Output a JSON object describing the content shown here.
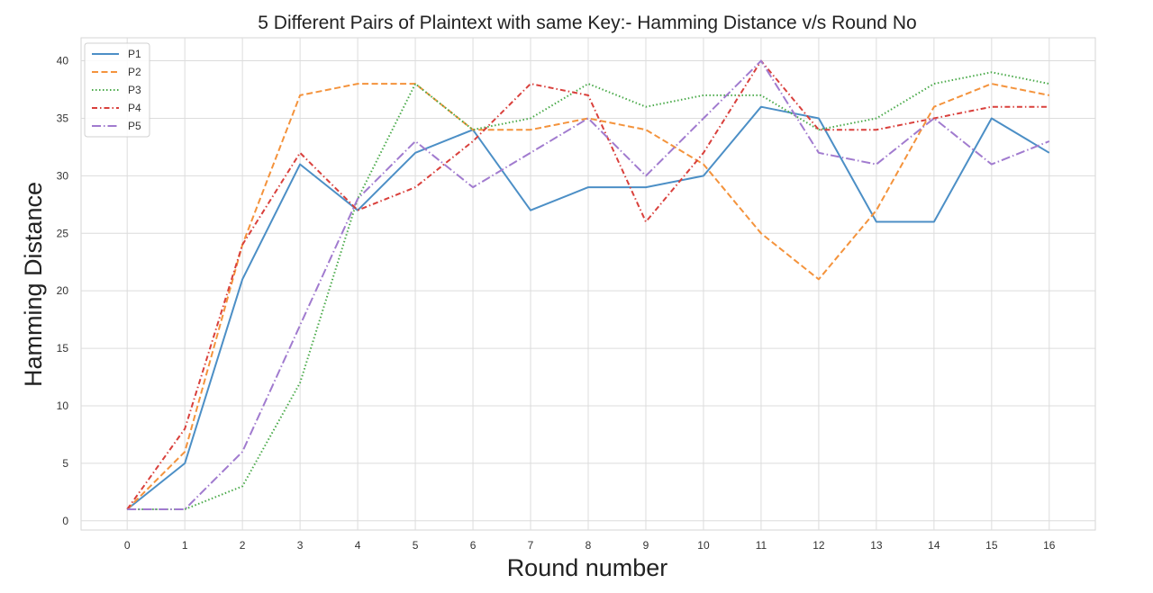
{
  "chart_data": {
    "type": "line",
    "title": "5 Different Pairs of Plaintext with same Key:- Hamming Distance v/s Round No",
    "xlabel": "Round number",
    "ylabel": "Hamming Distance",
    "x": [
      0,
      1,
      2,
      3,
      4,
      5,
      6,
      7,
      8,
      9,
      10,
      11,
      12,
      13,
      14,
      15,
      16
    ],
    "xlim": [
      -0.8,
      16.8
    ],
    "ylim": [
      -0.8,
      42
    ],
    "yticks": [
      0,
      5,
      10,
      15,
      20,
      25,
      30,
      35,
      40
    ],
    "grid": true,
    "legend_position": "top-left",
    "series": [
      {
        "name": "P1",
        "color": "#4c8fc6",
        "dash": "solid",
        "values": [
          1,
          5,
          21,
          31,
          27,
          32,
          34,
          27,
          29,
          29,
          30,
          36,
          35,
          26,
          26,
          35,
          32
        ]
      },
      {
        "name": "P2",
        "color": "#f4933c",
        "dash": "dashed",
        "values": [
          1,
          6,
          24,
          37,
          38,
          38,
          34,
          34,
          35,
          34,
          31,
          25,
          21,
          27,
          36,
          38,
          37
        ]
      },
      {
        "name": "P3",
        "color": "#4aaa4a",
        "dash": "dotted",
        "values": [
          1,
          1,
          3,
          12,
          28,
          38,
          34,
          35,
          38,
          36,
          37,
          37,
          34,
          35,
          38,
          39,
          38
        ]
      },
      {
        "name": "P4",
        "color": "#d9403c",
        "dash": "dashdot",
        "values": [
          1,
          8,
          24,
          32,
          27,
          29,
          33,
          38,
          37,
          26,
          32,
          40,
          34,
          34,
          35,
          36,
          36
        ]
      },
      {
        "name": "P5",
        "color": "#a17bcf",
        "dash": "longdashdot",
        "values": [
          1,
          1,
          6,
          17,
          28,
          33,
          29,
          32,
          35,
          30,
          35,
          40,
          32,
          31,
          35,
          31,
          33
        ]
      }
    ]
  }
}
